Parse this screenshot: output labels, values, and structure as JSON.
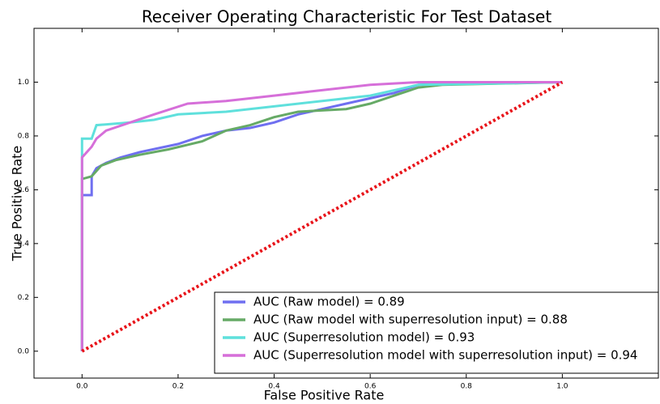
{
  "chart_data": {
    "type": "line",
    "title": "Receiver Operating Characteristic For Test Dataset",
    "xlabel": "False Positive Rate",
    "ylabel": "True Positive Rate",
    "xlim": [
      -0.1,
      1.2
    ],
    "ylim": [
      -0.1,
      1.2
    ],
    "xticks": [
      {
        "value": 0,
        "label": "0.0"
      },
      0.2,
      0.4,
      0.6,
      0.8,
      {
        "value": 1,
        "label": "1.0"
      }
    ],
    "yticks": [
      {
        "value": 0,
        "label": "0.0"
      },
      0.2,
      0.4,
      0.6,
      0.8,
      {
        "value": 1,
        "label": "1.0"
      }
    ],
    "legend": "lower right",
    "series": [
      {
        "name": "AUC (Raw model) = 0.89",
        "color": "#6f6ff0",
        "x": [
          0,
          0,
          0.02,
          0.02,
          0.03,
          0.05,
          0.08,
          0.12,
          0.2,
          0.25,
          0.3,
          0.35,
          0.4,
          0.45,
          0.5,
          0.55,
          0.6,
          0.65,
          0.7,
          0.8,
          1
        ],
        "values": [
          0,
          0.58,
          0.58,
          0.65,
          0.68,
          0.7,
          0.72,
          0.74,
          0.77,
          0.8,
          0.82,
          0.83,
          0.85,
          0.88,
          0.9,
          0.92,
          0.94,
          0.96,
          0.99,
          1,
          1
        ]
      },
      {
        "name": "AUC (Raw model with superresolution input) = 0.88",
        "color": "#66aa66",
        "x": [
          0,
          0,
          0.02,
          0.04,
          0.07,
          0.12,
          0.18,
          0.25,
          0.3,
          0.35,
          0.4,
          0.45,
          0.55,
          0.6,
          0.65,
          0.7,
          0.75,
          1
        ],
        "values": [
          0,
          0.64,
          0.65,
          0.69,
          0.71,
          0.73,
          0.75,
          0.78,
          0.82,
          0.84,
          0.87,
          0.89,
          0.9,
          0.92,
          0.95,
          0.98,
          0.99,
          1
        ]
      },
      {
        "name": "AUC (Superresolution model) = 0.93",
        "color": "#5fe0dc",
        "x": [
          0,
          0,
          0.02,
          0.03,
          0.1,
          0.15,
          0.2,
          0.3,
          0.4,
          0.5,
          0.6,
          0.7,
          1
        ],
        "values": [
          0,
          0.79,
          0.79,
          0.84,
          0.85,
          0.86,
          0.88,
          0.89,
          0.91,
          0.93,
          0.95,
          0.99,
          1
        ]
      },
      {
        "name": "AUC (Superresolution model with superresolution input) = 0.94",
        "color": "#d66fd9",
        "x": [
          0,
          0,
          0.02,
          0.03,
          0.05,
          0.1,
          0.15,
          0.22,
          0.3,
          0.4,
          0.5,
          0.6,
          0.7,
          1
        ],
        "values": [
          0,
          0.72,
          0.76,
          0.79,
          0.82,
          0.85,
          0.88,
          0.92,
          0.93,
          0.95,
          0.97,
          0.99,
          1,
          1
        ]
      }
    ],
    "reference_line": {
      "x": [
        0,
        1
      ],
      "values": [
        0,
        1
      ],
      "color": "#e8141a"
    }
  }
}
